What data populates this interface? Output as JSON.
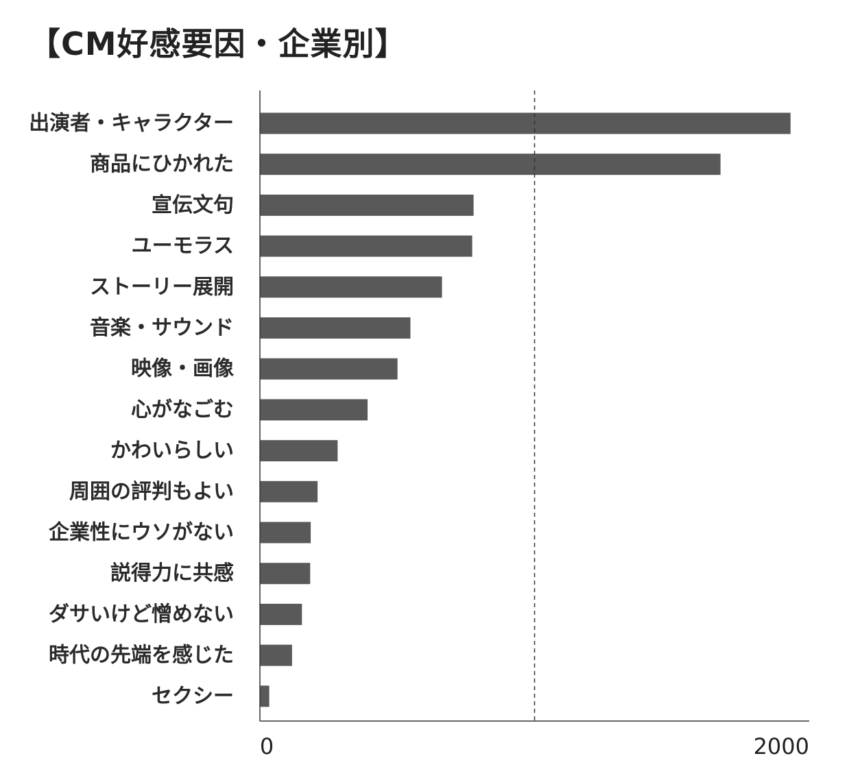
{
  "title": "【CM好感要因・企業別】",
  "colors": {
    "bar": "#595959",
    "axis": "#333333",
    "text": "#222222"
  },
  "chart_data": {
    "type": "bar",
    "orientation": "horizontal",
    "title": "【CM好感要因・企業別】",
    "categories": [
      "出演者・キャラクター",
      "商品にひかれた",
      "宣伝文句",
      "ユーモラス",
      "ストーリー展開",
      "音楽・サウンド",
      "映像・画像",
      "心がなごむ",
      "かわいらしい",
      "周囲の評判もよい",
      "企業性にウソがない",
      "説得力に共感",
      "ダサいけど憎めない",
      "時代の先端を感じた",
      "セクシー"
    ],
    "values": [
      1932,
      1677,
      778,
      773,
      663,
      548,
      501,
      392,
      283,
      210,
      185,
      183,
      153,
      117,
      34
    ],
    "xlim": [
      0,
      2000
    ],
    "xticks": [
      "0",
      "2000"
    ],
    "reference_line": 1000,
    "reference_line_style": "dashed",
    "grid": false,
    "legend": "none"
  }
}
